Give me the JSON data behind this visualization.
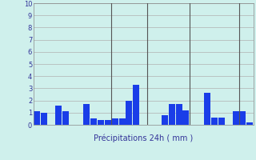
{
  "title": "",
  "xlabel": "Précipitations 24h ( mm )",
  "ylabel": "",
  "ylim": [
    0,
    10
  ],
  "yticks": [
    0,
    1,
    2,
    3,
    4,
    5,
    6,
    7,
    8,
    9,
    10
  ],
  "background_color": "#cff0ec",
  "bar_color": "#1a3de8",
  "grid_color": "#b0b0b0",
  "values": [
    1.1,
    1.0,
    0.0,
    1.6,
    1.1,
    0.0,
    0.0,
    1.7,
    0.5,
    0.4,
    0.4,
    0.5,
    0.5,
    2.0,
    3.3,
    0.0,
    0.0,
    0.0,
    0.8,
    1.7,
    1.7,
    1.2,
    0.0,
    0.0,
    2.6,
    0.6,
    0.6,
    0.0,
    1.1,
    1.1,
    0.2
  ],
  "vline_positions": [
    10.5,
    15.5,
    21.5,
    28.5
  ],
  "figsize": [
    3.2,
    2.0
  ],
  "dpi": 100
}
